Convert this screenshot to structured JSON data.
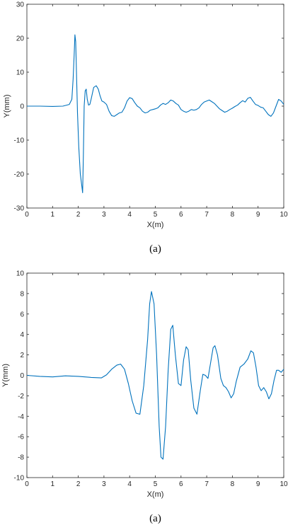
{
  "chart_data": [
    {
      "type": "line",
      "caption": "(a)",
      "xlabel": "X(m)",
      "ylabel": "Y(mm)",
      "xlim": [
        0,
        10
      ],
      "ylim": [
        -30,
        30
      ],
      "xticks": [
        0,
        1,
        2,
        3,
        4,
        5,
        6,
        7,
        8,
        9,
        10
      ],
      "yticks": [
        -30,
        -20,
        -10,
        0,
        10,
        20,
        30
      ],
      "grid": false,
      "series": [
        {
          "color": "#0072BD",
          "x": [
            0,
            0.5,
            1.0,
            1.4,
            1.65,
            1.75,
            1.8,
            1.84,
            1.87,
            1.9,
            1.93,
            1.97,
            2.02,
            2.08,
            2.13,
            2.17,
            2.2,
            2.23,
            2.27,
            2.31,
            2.35,
            2.4,
            2.45,
            2.5,
            2.6,
            2.7,
            2.78,
            2.85,
            2.92,
            3.0,
            3.1,
            3.2,
            3.3,
            3.4,
            3.5,
            3.6,
            3.7,
            3.8,
            3.9,
            4.0,
            4.1,
            4.2,
            4.3,
            4.4,
            4.5,
            4.6,
            4.7,
            4.8,
            4.9,
            5.0,
            5.1,
            5.2,
            5.3,
            5.4,
            5.5,
            5.6,
            5.7,
            5.8,
            5.9,
            6.0,
            6.1,
            6.2,
            6.3,
            6.4,
            6.5,
            6.6,
            6.7,
            6.8,
            6.9,
            7.0,
            7.1,
            7.2,
            7.3,
            7.4,
            7.5,
            7.6,
            7.7,
            7.8,
            7.9,
            8.0,
            8.1,
            8.2,
            8.3,
            8.4,
            8.5,
            8.6,
            8.7,
            8.8,
            8.9,
            9.0,
            9.1,
            9.2,
            9.3,
            9.4,
            9.5,
            9.6,
            9.7,
            9.8,
            9.9,
            10.0
          ],
          "y": [
            0,
            0,
            -0.1,
            0,
            0.5,
            2,
            8,
            15,
            21,
            19,
            10,
            -2,
            -12,
            -20,
            -23,
            -25.5,
            -14,
            0,
            4.5,
            5,
            2,
            0.3,
            0.5,
            2,
            5.5,
            6,
            5,
            3,
            1.5,
            1.2,
            0.5,
            -1.5,
            -2.8,
            -3,
            -2.5,
            -2,
            -1.8,
            -0.5,
            1.5,
            2.5,
            2.2,
            1,
            0,
            -0.5,
            -1.5,
            -2,
            -1.8,
            -1.2,
            -1,
            -0.8,
            -0.5,
            0.3,
            0.8,
            0.5,
            1,
            1.8,
            1.5,
            0.8,
            0.3,
            -1,
            -1.5,
            -1.8,
            -1.5,
            -1,
            -1.2,
            -1,
            -0.5,
            0.5,
            1.2,
            1.5,
            1.8,
            1.3,
            0.8,
            0,
            -0.8,
            -1.3,
            -1.8,
            -1.5,
            -1,
            -0.6,
            -0.1,
            0.3,
            1,
            1.6,
            1.2,
            2.3,
            2.6,
            1.5,
            0.5,
            0.2,
            -0.3,
            -0.5,
            -1.5,
            -2.5,
            -3,
            -2,
            0,
            2,
            1.5,
            0.5
          ]
        }
      ]
    },
    {
      "type": "line",
      "caption": "(a)",
      "xlabel": "X(m)",
      "ylabel": "Y(mm)",
      "xlim": [
        0,
        10
      ],
      "ylim": [
        -10,
        10
      ],
      "xticks": [
        0,
        1,
        2,
        3,
        4,
        5,
        6,
        7,
        8,
        9,
        10
      ],
      "yticks": [
        -10,
        -8,
        -6,
        -4,
        -2,
        0,
        2,
        4,
        6,
        8,
        10
      ],
      "grid": false,
      "series": [
        {
          "color": "#0072BD",
          "x": [
            0,
            0.5,
            1.0,
            1.5,
            2.0,
            2.5,
            2.9,
            3.1,
            3.3,
            3.5,
            3.65,
            3.8,
            3.95,
            4.1,
            4.25,
            4.4,
            4.55,
            4.7,
            4.78,
            4.85,
            4.95,
            5.05,
            5.15,
            5.22,
            5.3,
            5.4,
            5.5,
            5.6,
            5.68,
            5.78,
            5.9,
            6.0,
            6.1,
            6.2,
            6.28,
            6.38,
            6.5,
            6.62,
            6.75,
            6.85,
            6.95,
            7.05,
            7.15,
            7.25,
            7.32,
            7.42,
            7.55,
            7.65,
            7.75,
            7.85,
            7.95,
            8.05,
            8.15,
            8.3,
            8.45,
            8.6,
            8.72,
            8.82,
            8.92,
            9.02,
            9.12,
            9.22,
            9.32,
            9.42,
            9.52,
            9.62,
            9.72,
            9.8,
            9.9,
            10.0
          ],
          "y": [
            0,
            -0.1,
            -0.15,
            -0.05,
            -0.1,
            -0.2,
            -0.25,
            0.05,
            0.6,
            1.0,
            1.1,
            0.6,
            -0.8,
            -2.5,
            -3.7,
            -3.8,
            -1.0,
            3.5,
            7.0,
            8.2,
            7.0,
            2.0,
            -5.0,
            -8.0,
            -8.2,
            -5.0,
            0.5,
            4.5,
            4.9,
            2.0,
            -0.8,
            -1.0,
            1.5,
            2.8,
            2.5,
            -0.5,
            -3.2,
            -3.8,
            -1.5,
            0.1,
            0.0,
            -0.3,
            1.2,
            2.7,
            2.9,
            2.0,
            -0.3,
            -1.0,
            -1.2,
            -1.6,
            -2.2,
            -1.8,
            -0.6,
            0.8,
            1.1,
            1.6,
            2.4,
            2.2,
            0.8,
            -1.0,
            -1.5,
            -1.2,
            -1.6,
            -2.3,
            -1.8,
            -0.5,
            0.5,
            0.5,
            0.3,
            0.6
          ]
        }
      ]
    }
  ]
}
